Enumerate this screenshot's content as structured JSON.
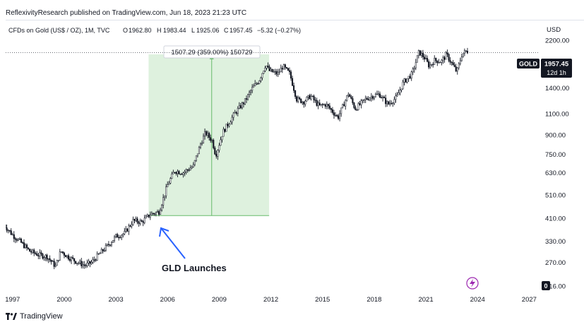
{
  "publisher_line": "ReflexivityResearch published on TradingView.com, Jun 18, 2023 21:23 UTC",
  "footer": {
    "brand": "TradingView"
  },
  "legend": {
    "symbol": "CFDs on Gold (US$ / OZ), 1M, TVC",
    "open_label": "O",
    "open": "1962.80",
    "high_label": "H",
    "high": "1983.44",
    "low_label": "L",
    "low": "1925.06",
    "close_label": "C",
    "close": "1957.45",
    "change": "−5.32 (−0.27%)"
  },
  "price_badge": {
    "symbol": "GOLD",
    "price": "1957.45",
    "countdown": "12d 1h"
  },
  "measure_label": "1507.29 (359.00%) 150729",
  "annotation": "GLD Launches",
  "axis_zero_label": "0",
  "colors": {
    "candle": "#131722",
    "measure_fill": "#d8efd8",
    "measure_line": "#66bb6a",
    "arrow": "#2962ff",
    "badge_bg": "#131722",
    "lightning": "#9c27b0"
  },
  "chart_data": {
    "type": "candlestick-ohlc",
    "interval": "1M",
    "currency": "USD",
    "y_scale": "log",
    "y_unit_label": "USD",
    "y_ticks": [
      "2200.00",
      "1400.00",
      "1100.00",
      "900.00",
      "750.00",
      "630.00",
      "510.00",
      "410.00",
      "330.00",
      "270.00",
      "216.00"
    ],
    "y_tick_values": [
      2200,
      1400,
      1100,
      900,
      750,
      630,
      510,
      410,
      330,
      270,
      216
    ],
    "x_ticks": [
      "1997",
      "2000",
      "2003",
      "2006",
      "2009",
      "2012",
      "2015",
      "2018",
      "2021",
      "2024",
      "2027"
    ],
    "x_tick_years": [
      1997,
      2000,
      2003,
      2006,
      2009,
      2012,
      2015,
      2018,
      2021,
      2024,
      2027
    ],
    "x_range": [
      1996.6,
      2027.6
    ],
    "y_range": [
      206,
      2650
    ],
    "last_price": 1957.45,
    "price_path": [
      [
        1996.5,
        385
      ],
      [
        1997.0,
        350
      ],
      [
        1997.5,
        325
      ],
      [
        1998.0,
        300
      ],
      [
        1998.5,
        290
      ],
      [
        1999.0,
        285
      ],
      [
        1999.5,
        260
      ],
      [
        1999.8,
        300
      ],
      [
        2000.2,
        285
      ],
      [
        2000.7,
        272
      ],
      [
        2001.2,
        262
      ],
      [
        2001.6,
        270
      ],
      [
        2002.0,
        290
      ],
      [
        2002.5,
        315
      ],
      [
        2003.0,
        345
      ],
      [
        2003.5,
        355
      ],
      [
        2004.0,
        400
      ],
      [
        2004.5,
        395
      ],
      [
        2005.0,
        425
      ],
      [
        2005.5,
        435
      ],
      [
        2006.0,
        560
      ],
      [
        2006.4,
        640
      ],
      [
        2006.9,
        630
      ],
      [
        2007.5,
        670
      ],
      [
        2007.9,
        820
      ],
      [
        2008.2,
        920
      ],
      [
        2008.6,
        850
      ],
      [
        2008.8,
        740
      ],
      [
        2009.2,
        920
      ],
      [
        2009.9,
        1100
      ],
      [
        2010.5,
        1240
      ],
      [
        2010.9,
        1390
      ],
      [
        2011.3,
        1500
      ],
      [
        2011.7,
        1750
      ],
      [
        2011.9,
        1650
      ],
      [
        2012.4,
        1600
      ],
      [
        2012.7,
        1720
      ],
      [
        2013.1,
        1600
      ],
      [
        2013.5,
        1260
      ],
      [
        2013.9,
        1230
      ],
      [
        2014.3,
        1300
      ],
      [
        2014.8,
        1180
      ],
      [
        2015.2,
        1200
      ],
      [
        2015.9,
        1060
      ],
      [
        2016.5,
        1330
      ],
      [
        2016.9,
        1150
      ],
      [
        2017.5,
        1260
      ],
      [
        2017.9,
        1300
      ],
      [
        2018.3,
        1320
      ],
      [
        2018.8,
        1200
      ],
      [
        2019.3,
        1280
      ],
      [
        2019.7,
        1480
      ],
      [
        2020.2,
        1600
      ],
      [
        2020.6,
        1970
      ],
      [
        2020.9,
        1870
      ],
      [
        2021.2,
        1720
      ],
      [
        2021.5,
        1820
      ],
      [
        2021.9,
        1800
      ],
      [
        2022.2,
        1920
      ],
      [
        2022.6,
        1720
      ],
      [
        2022.8,
        1630
      ],
      [
        2023.1,
        1930
      ],
      [
        2023.4,
        1990
      ],
      [
        2023.46,
        1957.45
      ]
    ],
    "measure": {
      "from_date": 2004.9,
      "to_date": 2011.9,
      "from_price": 420,
      "to_price": 1925,
      "label": "1507.29 (359.00%) 150729"
    },
    "annotations": [
      {
        "text": "GLD Launches",
        "date": 2004.9,
        "price": 420
      }
    ]
  }
}
